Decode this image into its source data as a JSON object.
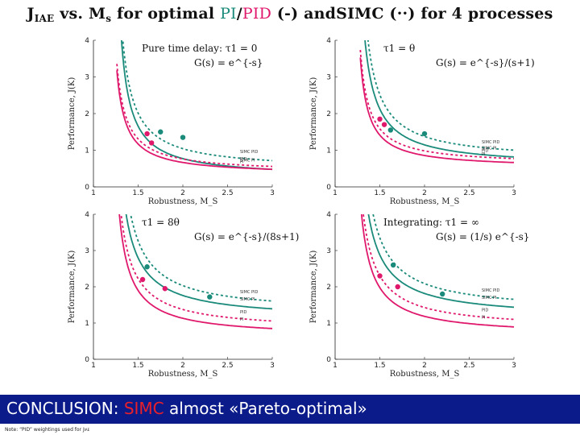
{
  "title": {
    "prefix": "J",
    "prefix_sub": "IAE",
    "part1": " vs. M",
    "part1_sub": "s",
    "part2": " for optimal ",
    "pi": "PI",
    "slash": "/",
    "pid": "PID",
    "part3": " (-) and",
    "simc": "SIMC (··) for 4 processes"
  },
  "banner": {
    "lead": "CONCLUSION: ",
    "highlight": "SIMC",
    "rest": " almost «Pareto-optimal»"
  },
  "note": {
    "text": "Note: “PID” weightings used for J",
    "sub": "IAE"
  },
  "colors": {
    "teal": "#1a8a7a",
    "magenta": "#e0186c",
    "banner": "#0b1b8a"
  },
  "chart_data": [
    {
      "type": "line",
      "title": "Pure time delay: τ1 = 0",
      "formula": "G(s) = e^{-s}",
      "xlabel": "Robustness, M_S",
      "ylabel": "Performance, J(K)",
      "xlim": [
        1,
        3
      ],
      "ylim": [
        0,
        4
      ],
      "xticks": [
        "1",
        "1.5",
        "2",
        "2.5",
        "3"
      ],
      "yticks": [
        "0",
        "1",
        "2",
        "3",
        "4"
      ],
      "series": [
        {
          "name": "Optimal PI",
          "color": "#1a8a7a",
          "dash": false,
          "a": 1.5,
          "b": 0.28,
          "c": 0.62,
          "x0": 1.3
        },
        {
          "name": "SIMC PI",
          "color": "#1a8a7a",
          "dash": true,
          "a": 1.58,
          "b": 0.3,
          "c": 0.85,
          "x0": 1.3
        },
        {
          "name": "Optimal PID",
          "color": "#e0186c",
          "dash": false,
          "a": 1.02,
          "b": 0.28,
          "c": 0.58,
          "x0": 1.26
        },
        {
          "name": "SIMC PID",
          "color": "#e0186c",
          "dash": true,
          "a": 1.06,
          "b": 0.3,
          "c": 0.65,
          "x0": 1.26
        }
      ],
      "points": [
        {
          "x": 1.6,
          "y": 1.45,
          "color": "#e0186c"
        },
        {
          "x": 1.65,
          "y": 1.2,
          "color": "#e0186c"
        },
        {
          "x": 2.0,
          "y": 1.35,
          "color": "#1a8a7a"
        },
        {
          "x": 1.75,
          "y": 1.5,
          "color": "#1a8a7a"
        }
      ],
      "labels": [
        "SIMC PI",
        "SIMC PID",
        "PI",
        "PID"
      ]
    },
    {
      "type": "line",
      "title": "τ1 = θ",
      "formula": "G(s) = e^{-s}/(s+1)",
      "xlabel": "Robustness, M_S",
      "ylabel": "Performance, J(K)",
      "xlim": [
        1,
        3
      ],
      "ylim": [
        0,
        4
      ],
      "xticks": [
        "1",
        "1.5",
        "2",
        "2.5",
        "3"
      ],
      "yticks": [
        "0",
        "1",
        "2",
        "3",
        "4"
      ],
      "series": [
        {
          "name": "Optimal PI",
          "color": "#1a8a7a",
          "dash": false,
          "a": 1.6,
          "b": 0.3,
          "c": 0.95,
          "x0": 1.3
        },
        {
          "name": "SIMC PI",
          "color": "#1a8a7a",
          "dash": true,
          "a": 1.65,
          "b": 0.32,
          "c": 1.12,
          "x0": 1.32
        },
        {
          "name": "Optimal PID",
          "color": "#e0186c",
          "dash": false,
          "a": 1.08,
          "b": 0.26,
          "c": 0.78,
          "x0": 1.28
        },
        {
          "name": "SIMC PID",
          "color": "#e0186c",
          "dash": true,
          "a": 1.12,
          "b": 0.28,
          "c": 0.88,
          "x0": 1.28
        }
      ],
      "points": [
        {
          "x": 1.55,
          "y": 1.7,
          "color": "#e0186c"
        },
        {
          "x": 1.62,
          "y": 1.55,
          "color": "#1a8a7a"
        },
        {
          "x": 2.0,
          "y": 1.45,
          "color": "#1a8a7a"
        },
        {
          "x": 1.5,
          "y": 1.85,
          "color": "#e0186c"
        }
      ],
      "labels": [
        "SIMC PI",
        "SIMC PID",
        "PI",
        "PID"
      ]
    },
    {
      "type": "line",
      "title": "τ1 = 8θ",
      "formula": "G(s) = e^{-s}/(8s+1)",
      "xlabel": "Robustness, M_S",
      "ylabel": "Performance, J(K)",
      "xlim": [
        1,
        3
      ],
      "ylim": [
        0,
        4
      ],
      "xticks": [
        "1",
        "1.5",
        "2",
        "2.5",
        "3"
      ],
      "yticks": [
        "0",
        "1",
        "2",
        "3",
        "4"
      ],
      "series": [
        {
          "name": "Optimal PI",
          "color": "#1a8a7a",
          "dash": false,
          "a": 1.85,
          "b": 0.3,
          "c": 1.55,
          "x0": 1.28
        },
        {
          "name": "SIMC PI",
          "color": "#1a8a7a",
          "dash": true,
          "a": 1.95,
          "b": 0.32,
          "c": 1.75,
          "x0": 1.3
        },
        {
          "name": "Optimal PID",
          "color": "#e0186c",
          "dash": false,
          "a": 1.55,
          "b": 0.28,
          "c": 1.0,
          "x0": 1.26
        },
        {
          "name": "SIMC PID",
          "color": "#e0186c",
          "dash": true,
          "a": 1.65,
          "b": 0.3,
          "c": 1.2,
          "x0": 1.26
        }
      ],
      "points": [
        {
          "x": 1.55,
          "y": 2.2,
          "color": "#e0186c"
        },
        {
          "x": 1.8,
          "y": 1.95,
          "color": "#e0186c"
        },
        {
          "x": 2.3,
          "y": 1.72,
          "color": "#1a8a7a"
        },
        {
          "x": 1.6,
          "y": 2.55,
          "color": "#1a8a7a"
        }
      ],
      "labels": [
        "SIMC PI",
        "SIMC PID",
        "PI",
        "PID"
      ]
    },
    {
      "type": "line",
      "title": "Integrating: τ1 = ∞",
      "formula": "G(s) = (1/s) e^{-s}",
      "xlabel": "Robustness, M_S",
      "ylabel": "Performance, J(K)",
      "xlim": [
        1,
        3
      ],
      "ylim": [
        0,
        4
      ],
      "xticks": [
        "1",
        "1.5",
        "2",
        "2.5",
        "3"
      ],
      "yticks": [
        "0",
        "1",
        "2",
        "3",
        "4"
      ],
      "series": [
        {
          "name": "Optimal PI",
          "color": "#1a8a7a",
          "dash": false,
          "a": 1.9,
          "b": 0.3,
          "c": 1.6,
          "x0": 1.28
        },
        {
          "name": "SIMC PI",
          "color": "#1a8a7a",
          "dash": true,
          "a": 2.0,
          "b": 0.32,
          "c": 1.8,
          "x0": 1.3
        },
        {
          "name": "Optimal PID",
          "color": "#e0186c",
          "dash": false,
          "a": 1.6,
          "b": 0.28,
          "c": 1.05,
          "x0": 1.26
        },
        {
          "name": "SIMC PID",
          "color": "#e0186c",
          "dash": true,
          "a": 1.7,
          "b": 0.3,
          "c": 1.25,
          "x0": 1.26
        }
      ],
      "points": [
        {
          "x": 1.5,
          "y": 2.3,
          "color": "#e0186c"
        },
        {
          "x": 1.7,
          "y": 2.0,
          "color": "#e0186c"
        },
        {
          "x": 2.2,
          "y": 1.8,
          "color": "#1a8a7a"
        },
        {
          "x": 1.65,
          "y": 2.6,
          "color": "#1a8a7a"
        }
      ],
      "labels": [
        "SIMC PI",
        "SIMC PID",
        "PI",
        "PID"
      ]
    }
  ]
}
